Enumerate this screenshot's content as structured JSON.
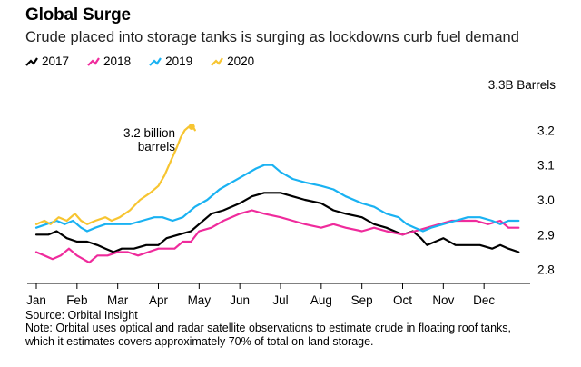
{
  "header": {
    "title": "Global Surge",
    "subtitle": "Crude placed into storage tanks is surging as lockdowns curb fuel demand"
  },
  "colors": {
    "2017": "#000000",
    "2018": "#ef2b9c",
    "2019": "#1ab2f2",
    "2020": "#f7c531"
  },
  "chart_data": {
    "type": "line",
    "title": "Global Surge",
    "ylabel": "3.3B Barrels",
    "ylim": [
      2.76,
      3.3
    ],
    "xlim": [
      0,
      12
    ],
    "x_ticks": [
      "Jan",
      "Feb",
      "Mar",
      "Apr",
      "May",
      "Jun",
      "Jul",
      "Aug",
      "Sep",
      "Oct",
      "Nov",
      "Dec"
    ],
    "y_ticks": [
      {
        "value": 3.2,
        "label": "3.2"
      },
      {
        "value": 3.1,
        "label": "3.1"
      },
      {
        "value": 3.0,
        "label": "3.0"
      },
      {
        "value": 2.9,
        "label": "2.9"
      },
      {
        "value": 2.8,
        "label": "2.8"
      }
    ],
    "legend_position": "top-left",
    "series": [
      {
        "name": "2017",
        "points": [
          [
            0,
            2.9
          ],
          [
            0.3,
            2.9
          ],
          [
            0.5,
            2.91
          ],
          [
            0.75,
            2.89
          ],
          [
            1.0,
            2.88
          ],
          [
            1.25,
            2.88
          ],
          [
            1.5,
            2.87
          ],
          [
            1.7,
            2.86
          ],
          [
            1.9,
            2.85
          ],
          [
            2.1,
            2.86
          ],
          [
            2.4,
            2.86
          ],
          [
            2.7,
            2.87
          ],
          [
            3.0,
            2.87
          ],
          [
            3.2,
            2.89
          ],
          [
            3.5,
            2.9
          ],
          [
            3.8,
            2.91
          ],
          [
            4.0,
            2.93
          ],
          [
            4.3,
            2.96
          ],
          [
            4.6,
            2.97
          ],
          [
            5.0,
            2.99
          ],
          [
            5.3,
            3.01
          ],
          [
            5.6,
            3.02
          ],
          [
            6.0,
            3.02
          ],
          [
            6.3,
            3.01
          ],
          [
            6.6,
            3.0
          ],
          [
            7.0,
            2.99
          ],
          [
            7.3,
            2.97
          ],
          [
            7.6,
            2.96
          ],
          [
            8.0,
            2.95
          ],
          [
            8.3,
            2.93
          ],
          [
            8.6,
            2.92
          ],
          [
            9.0,
            2.9
          ],
          [
            9.25,
            2.91
          ],
          [
            9.45,
            2.89
          ],
          [
            9.6,
            2.87
          ],
          [
            9.8,
            2.88
          ],
          [
            10.0,
            2.89
          ],
          [
            10.3,
            2.87
          ],
          [
            10.6,
            2.87
          ],
          [
            10.9,
            2.87
          ],
          [
            11.2,
            2.86
          ],
          [
            11.4,
            2.87
          ],
          [
            11.6,
            2.86
          ],
          [
            11.85,
            2.85
          ]
        ]
      },
      {
        "name": "2018",
        "points": [
          [
            0,
            2.85
          ],
          [
            0.2,
            2.84
          ],
          [
            0.4,
            2.83
          ],
          [
            0.6,
            2.84
          ],
          [
            0.8,
            2.86
          ],
          [
            1.0,
            2.84
          ],
          [
            1.15,
            2.83
          ],
          [
            1.3,
            2.82
          ],
          [
            1.5,
            2.84
          ],
          [
            1.75,
            2.84
          ],
          [
            2.0,
            2.85
          ],
          [
            2.25,
            2.85
          ],
          [
            2.5,
            2.84
          ],
          [
            2.75,
            2.85
          ],
          [
            3.0,
            2.86
          ],
          [
            3.2,
            2.86
          ],
          [
            3.4,
            2.86
          ],
          [
            3.6,
            2.88
          ],
          [
            3.8,
            2.88
          ],
          [
            4.0,
            2.91
          ],
          [
            4.3,
            2.92
          ],
          [
            4.6,
            2.94
          ],
          [
            5.0,
            2.96
          ],
          [
            5.3,
            2.97
          ],
          [
            5.6,
            2.96
          ],
          [
            6.0,
            2.95
          ],
          [
            6.3,
            2.94
          ],
          [
            6.6,
            2.93
          ],
          [
            7.0,
            2.92
          ],
          [
            7.3,
            2.93
          ],
          [
            7.6,
            2.92
          ],
          [
            8.0,
            2.91
          ],
          [
            8.3,
            2.92
          ],
          [
            8.6,
            2.91
          ],
          [
            9.0,
            2.9
          ],
          [
            9.3,
            2.91
          ],
          [
            9.6,
            2.92
          ],
          [
            9.9,
            2.93
          ],
          [
            10.2,
            2.94
          ],
          [
            10.5,
            2.94
          ],
          [
            10.8,
            2.94
          ],
          [
            11.1,
            2.93
          ],
          [
            11.4,
            2.94
          ],
          [
            11.6,
            2.92
          ],
          [
            11.85,
            2.92
          ]
        ]
      },
      {
        "name": "2019",
        "points": [
          [
            0,
            2.92
          ],
          [
            0.25,
            2.93
          ],
          [
            0.5,
            2.94
          ],
          [
            0.7,
            2.93
          ],
          [
            0.9,
            2.94
          ],
          [
            1.1,
            2.92
          ],
          [
            1.25,
            2.91
          ],
          [
            1.45,
            2.92
          ],
          [
            1.7,
            2.93
          ],
          [
            2.0,
            2.93
          ],
          [
            2.3,
            2.93
          ],
          [
            2.6,
            2.94
          ],
          [
            2.9,
            2.95
          ],
          [
            3.1,
            2.95
          ],
          [
            3.35,
            2.94
          ],
          [
            3.6,
            2.95
          ],
          [
            3.9,
            2.98
          ],
          [
            4.2,
            3.0
          ],
          [
            4.5,
            3.03
          ],
          [
            4.8,
            3.05
          ],
          [
            5.1,
            3.07
          ],
          [
            5.4,
            3.09
          ],
          [
            5.6,
            3.1
          ],
          [
            5.8,
            3.1
          ],
          [
            6.0,
            3.08
          ],
          [
            6.3,
            3.06
          ],
          [
            6.6,
            3.05
          ],
          [
            7.0,
            3.04
          ],
          [
            7.3,
            3.03
          ],
          [
            7.6,
            3.01
          ],
          [
            8.0,
            2.99
          ],
          [
            8.3,
            2.98
          ],
          [
            8.6,
            2.96
          ],
          [
            8.9,
            2.95
          ],
          [
            9.1,
            2.93
          ],
          [
            9.3,
            2.92
          ],
          [
            9.5,
            2.91
          ],
          [
            9.7,
            2.92
          ],
          [
            10.0,
            2.93
          ],
          [
            10.3,
            2.94
          ],
          [
            10.6,
            2.95
          ],
          [
            10.9,
            2.95
          ],
          [
            11.2,
            2.94
          ],
          [
            11.4,
            2.93
          ],
          [
            11.6,
            2.94
          ],
          [
            11.85,
            2.94
          ]
        ]
      },
      {
        "name": "2020",
        "points": [
          [
            0,
            2.93
          ],
          [
            0.2,
            2.94
          ],
          [
            0.35,
            2.93
          ],
          [
            0.55,
            2.95
          ],
          [
            0.75,
            2.94
          ],
          [
            0.95,
            2.96
          ],
          [
            1.1,
            2.94
          ],
          [
            1.25,
            2.93
          ],
          [
            1.45,
            2.94
          ],
          [
            1.7,
            2.95
          ],
          [
            1.85,
            2.94
          ],
          [
            2.05,
            2.95
          ],
          [
            2.3,
            2.97
          ],
          [
            2.55,
            3.0
          ],
          [
            2.8,
            3.02
          ],
          [
            3.0,
            3.04
          ],
          [
            3.15,
            3.07
          ],
          [
            3.3,
            3.11
          ],
          [
            3.45,
            3.15
          ],
          [
            3.55,
            3.18
          ],
          [
            3.65,
            3.2
          ],
          [
            3.75,
            3.21
          ],
          [
            3.85,
            3.21
          ],
          [
            3.9,
            3.2
          ]
        ]
      }
    ],
    "annotations": [
      {
        "text_line1": "3.2 billion",
        "text_line2": "barrels",
        "x": 3.85,
        "y": 3.21
      }
    ],
    "source": "Source: Orbital Insight",
    "note_line1": "Note: Orbital uses optical and radar satellite observations to estimate crude in floating roof tanks,",
    "note_line2": "which it estimates covers approximately 70% of total on-land storage."
  }
}
